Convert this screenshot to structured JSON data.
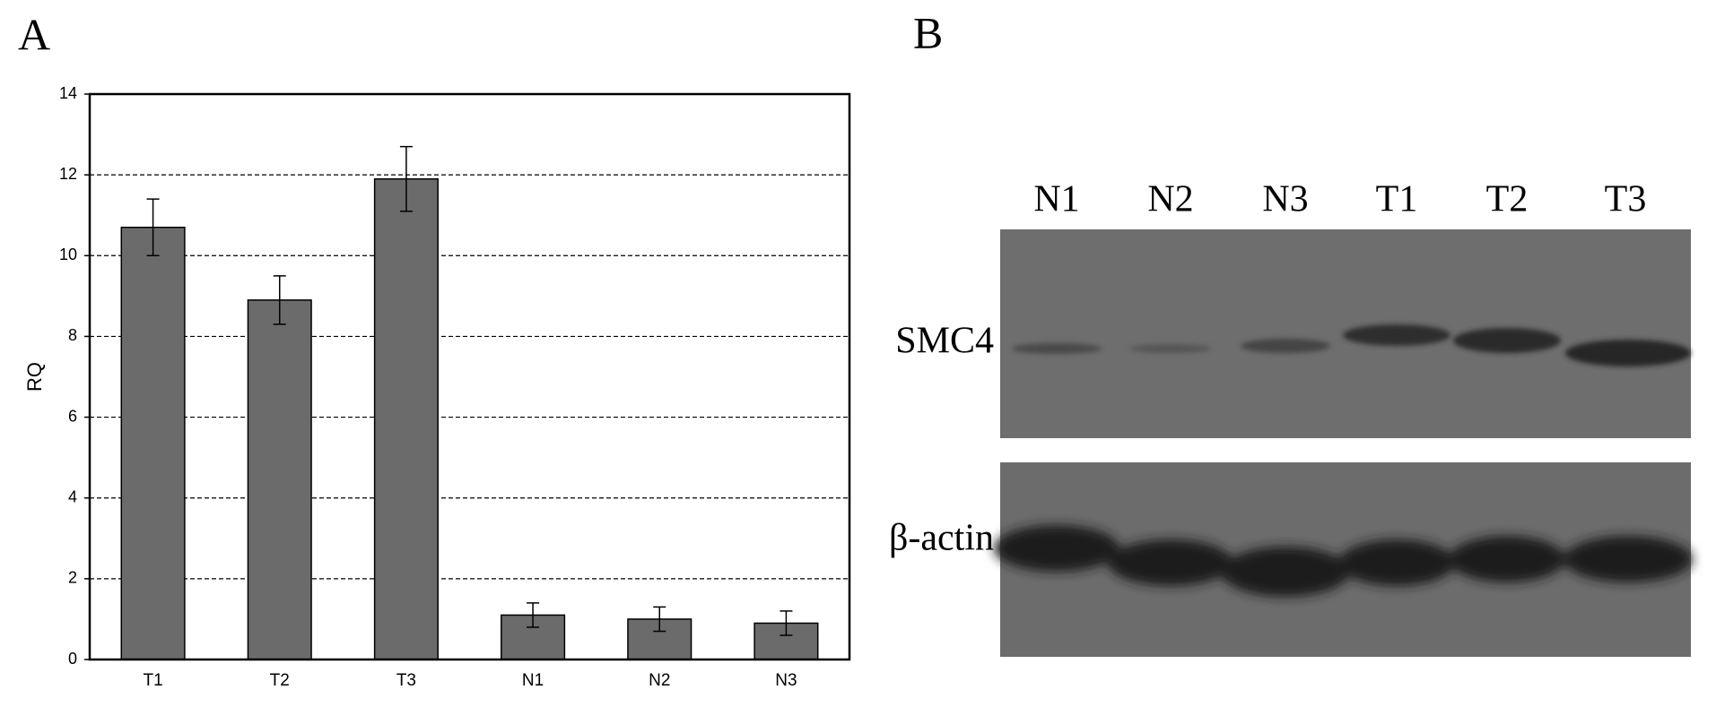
{
  "panel_labels": [
    "A",
    "B"
  ],
  "chart_data": {
    "type": "bar",
    "y_label": "RQ",
    "categories": [
      "T1",
      "T2",
      "T3",
      "N1",
      "N2",
      "N3"
    ],
    "values": [
      10.7,
      8.9,
      11.9,
      1.1,
      1.0,
      0.9
    ],
    "errors": [
      0.7,
      0.6,
      0.8,
      0.3,
      0.3,
      0.3
    ],
    "color": "#6b6b6b",
    "ylim": [
      0,
      14
    ],
    "yticks": [
      0,
      2,
      4,
      6,
      8,
      10,
      12,
      14
    ],
    "grid": true
  },
  "blot": {
    "lanes": [
      "N1",
      "N2",
      "N3",
      "T1",
      "T2",
      "T3"
    ],
    "rows": [
      "SMC4",
      "β-actin"
    ]
  }
}
